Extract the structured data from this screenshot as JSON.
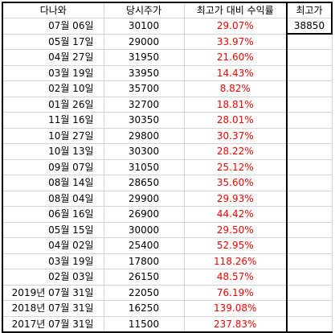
{
  "header": {
    "col_name": "다나와",
    "col_price": "당시주가",
    "col_return": "최고가 대비 수익률",
    "col_high": "최고가"
  },
  "high_value": "38850",
  "rows": [
    {
      "date": "07월 06일",
      "price": "30100",
      "ret": "29.07%"
    },
    {
      "date": "05월 17일",
      "price": "29000",
      "ret": "33.97%"
    },
    {
      "date": "04월 27일",
      "price": "31950",
      "ret": "21.60%"
    },
    {
      "date": "03월 19일",
      "price": "33950",
      "ret": "14.43%"
    },
    {
      "date": "02월 10일",
      "price": "35700",
      "ret": "8.82%"
    },
    {
      "date": "01월 26일",
      "price": "32700",
      "ret": "18.81%"
    },
    {
      "date": "11월 16일",
      "price": "30350",
      "ret": "28.01%"
    },
    {
      "date": "10월 27일",
      "price": "29800",
      "ret": "30.37%"
    },
    {
      "date": "10월 13일",
      "price": "30300",
      "ret": "28.22%"
    },
    {
      "date": "09월 07일",
      "price": "31050",
      "ret": "25.12%"
    },
    {
      "date": "08월 14일",
      "price": "28650",
      "ret": "35.60%"
    },
    {
      "date": "08월 04일",
      "price": "29900",
      "ret": "29.93%"
    },
    {
      "date": "06월 16일",
      "price": "26900",
      "ret": "44.42%"
    },
    {
      "date": "05월 15일",
      "price": "30000",
      "ret": "29.50%"
    },
    {
      "date": "04월 02일",
      "price": "25400",
      "ret": "52.95%"
    },
    {
      "date": "03월 19일",
      "price": "17800",
      "ret": "118.26%"
    },
    {
      "date": "02월 03일",
      "price": "26150",
      "ret": "48.57%"
    },
    {
      "date": "2019년 07월 31일",
      "price": "22050",
      "ret": "76.19%"
    },
    {
      "date": "2018년 07월 31일",
      "price": "16250",
      "ret": "139.08%"
    },
    {
      "date": "2017년 07월 31일",
      "price": "11500",
      "ret": "237.83%"
    }
  ],
  "colors": {
    "return_text": "#ff0000",
    "grid_line": "#d4d4d4",
    "border": "#000000"
  }
}
